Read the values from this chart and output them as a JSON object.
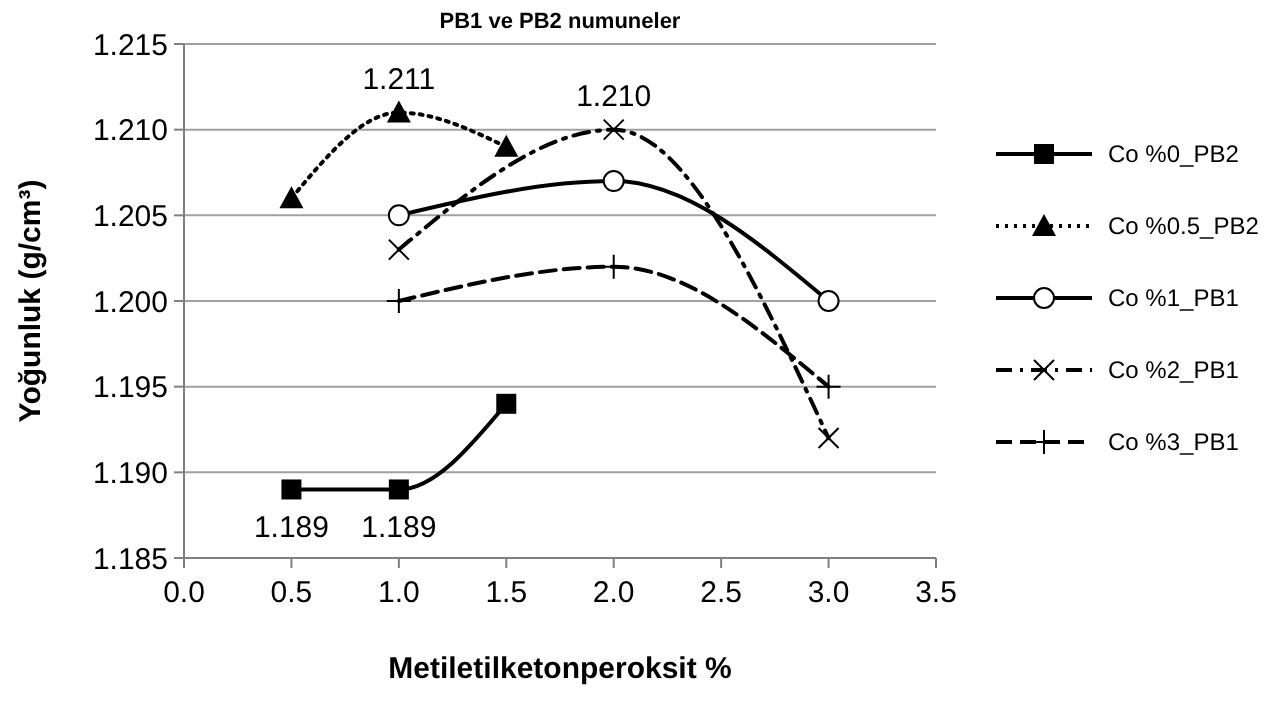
{
  "chart_data": {
    "type": "line",
    "title": "PB1 ve PB2 numuneler",
    "xlabel": "Metiletilketonperoksit %",
    "ylabel": "Yoğunluk (g/cm³)",
    "xlim": [
      0,
      3.5
    ],
    "xticks": [
      {
        "value": 0,
        "label": "0.0"
      },
      0.5,
      {
        "value": 1,
        "label": "1.0"
      },
      1.5,
      {
        "value": 2,
        "label": "2.0"
      },
      2.5,
      {
        "value": 3,
        "label": "3.0"
      },
      3.5
    ],
    "ylim": [
      1.185,
      1.215
    ],
    "yticks": [
      1.185,
      {
        "value": 1.19,
        "label": "1.190"
      },
      1.195,
      {
        "value": 1.2,
        "label": "1.200"
      },
      1.205,
      {
        "value": 1.21,
        "label": "1.210"
      },
      1.215
    ],
    "grid": "y",
    "legend": "right",
    "series": [
      {
        "name": "Co %0_PB2",
        "color": "#000000",
        "marker": "square",
        "line_style": "solid",
        "x": [
          0.5,
          1,
          1.5
        ],
        "values": [
          1.189,
          1.189,
          1.194
        ]
      },
      {
        "name": "Co %0.5_PB2",
        "color": "#000000",
        "marker": "triangle",
        "line_style": "dotted",
        "x": [
          0.5,
          1,
          1.5
        ],
        "values": [
          1.206,
          1.211,
          1.209
        ]
      },
      {
        "name": "Co %1_PB1",
        "color": "#000000",
        "marker": "circle",
        "line_style": "solid",
        "x": [
          1,
          2,
          3
        ],
        "values": [
          1.205,
          1.207,
          1.2
        ]
      },
      {
        "name": "Co %2_PB1",
        "color": "#000000",
        "marker": "x",
        "line_style": "dashdot",
        "x": [
          1,
          2,
          3
        ],
        "values": [
          1.203,
          1.21,
          1.192
        ]
      },
      {
        "name": "Co %3_PB1",
        "color": "#000000",
        "marker": "cross",
        "line_style": "dashed",
        "x": [
          1,
          2,
          3
        ],
        "values": [
          1.2,
          1.202,
          1.195
        ]
      }
    ],
    "annotations": [
      {
        "text": "1.189",
        "x": 0.5,
        "y": 1.189
      },
      {
        "text": "1.189",
        "x": 1,
        "y": 1.189
      },
      {
        "text": "1.211",
        "x": 1,
        "y": 1.211
      },
      {
        "text": "1.210",
        "x": 2,
        "y": 1.21
      }
    ]
  }
}
